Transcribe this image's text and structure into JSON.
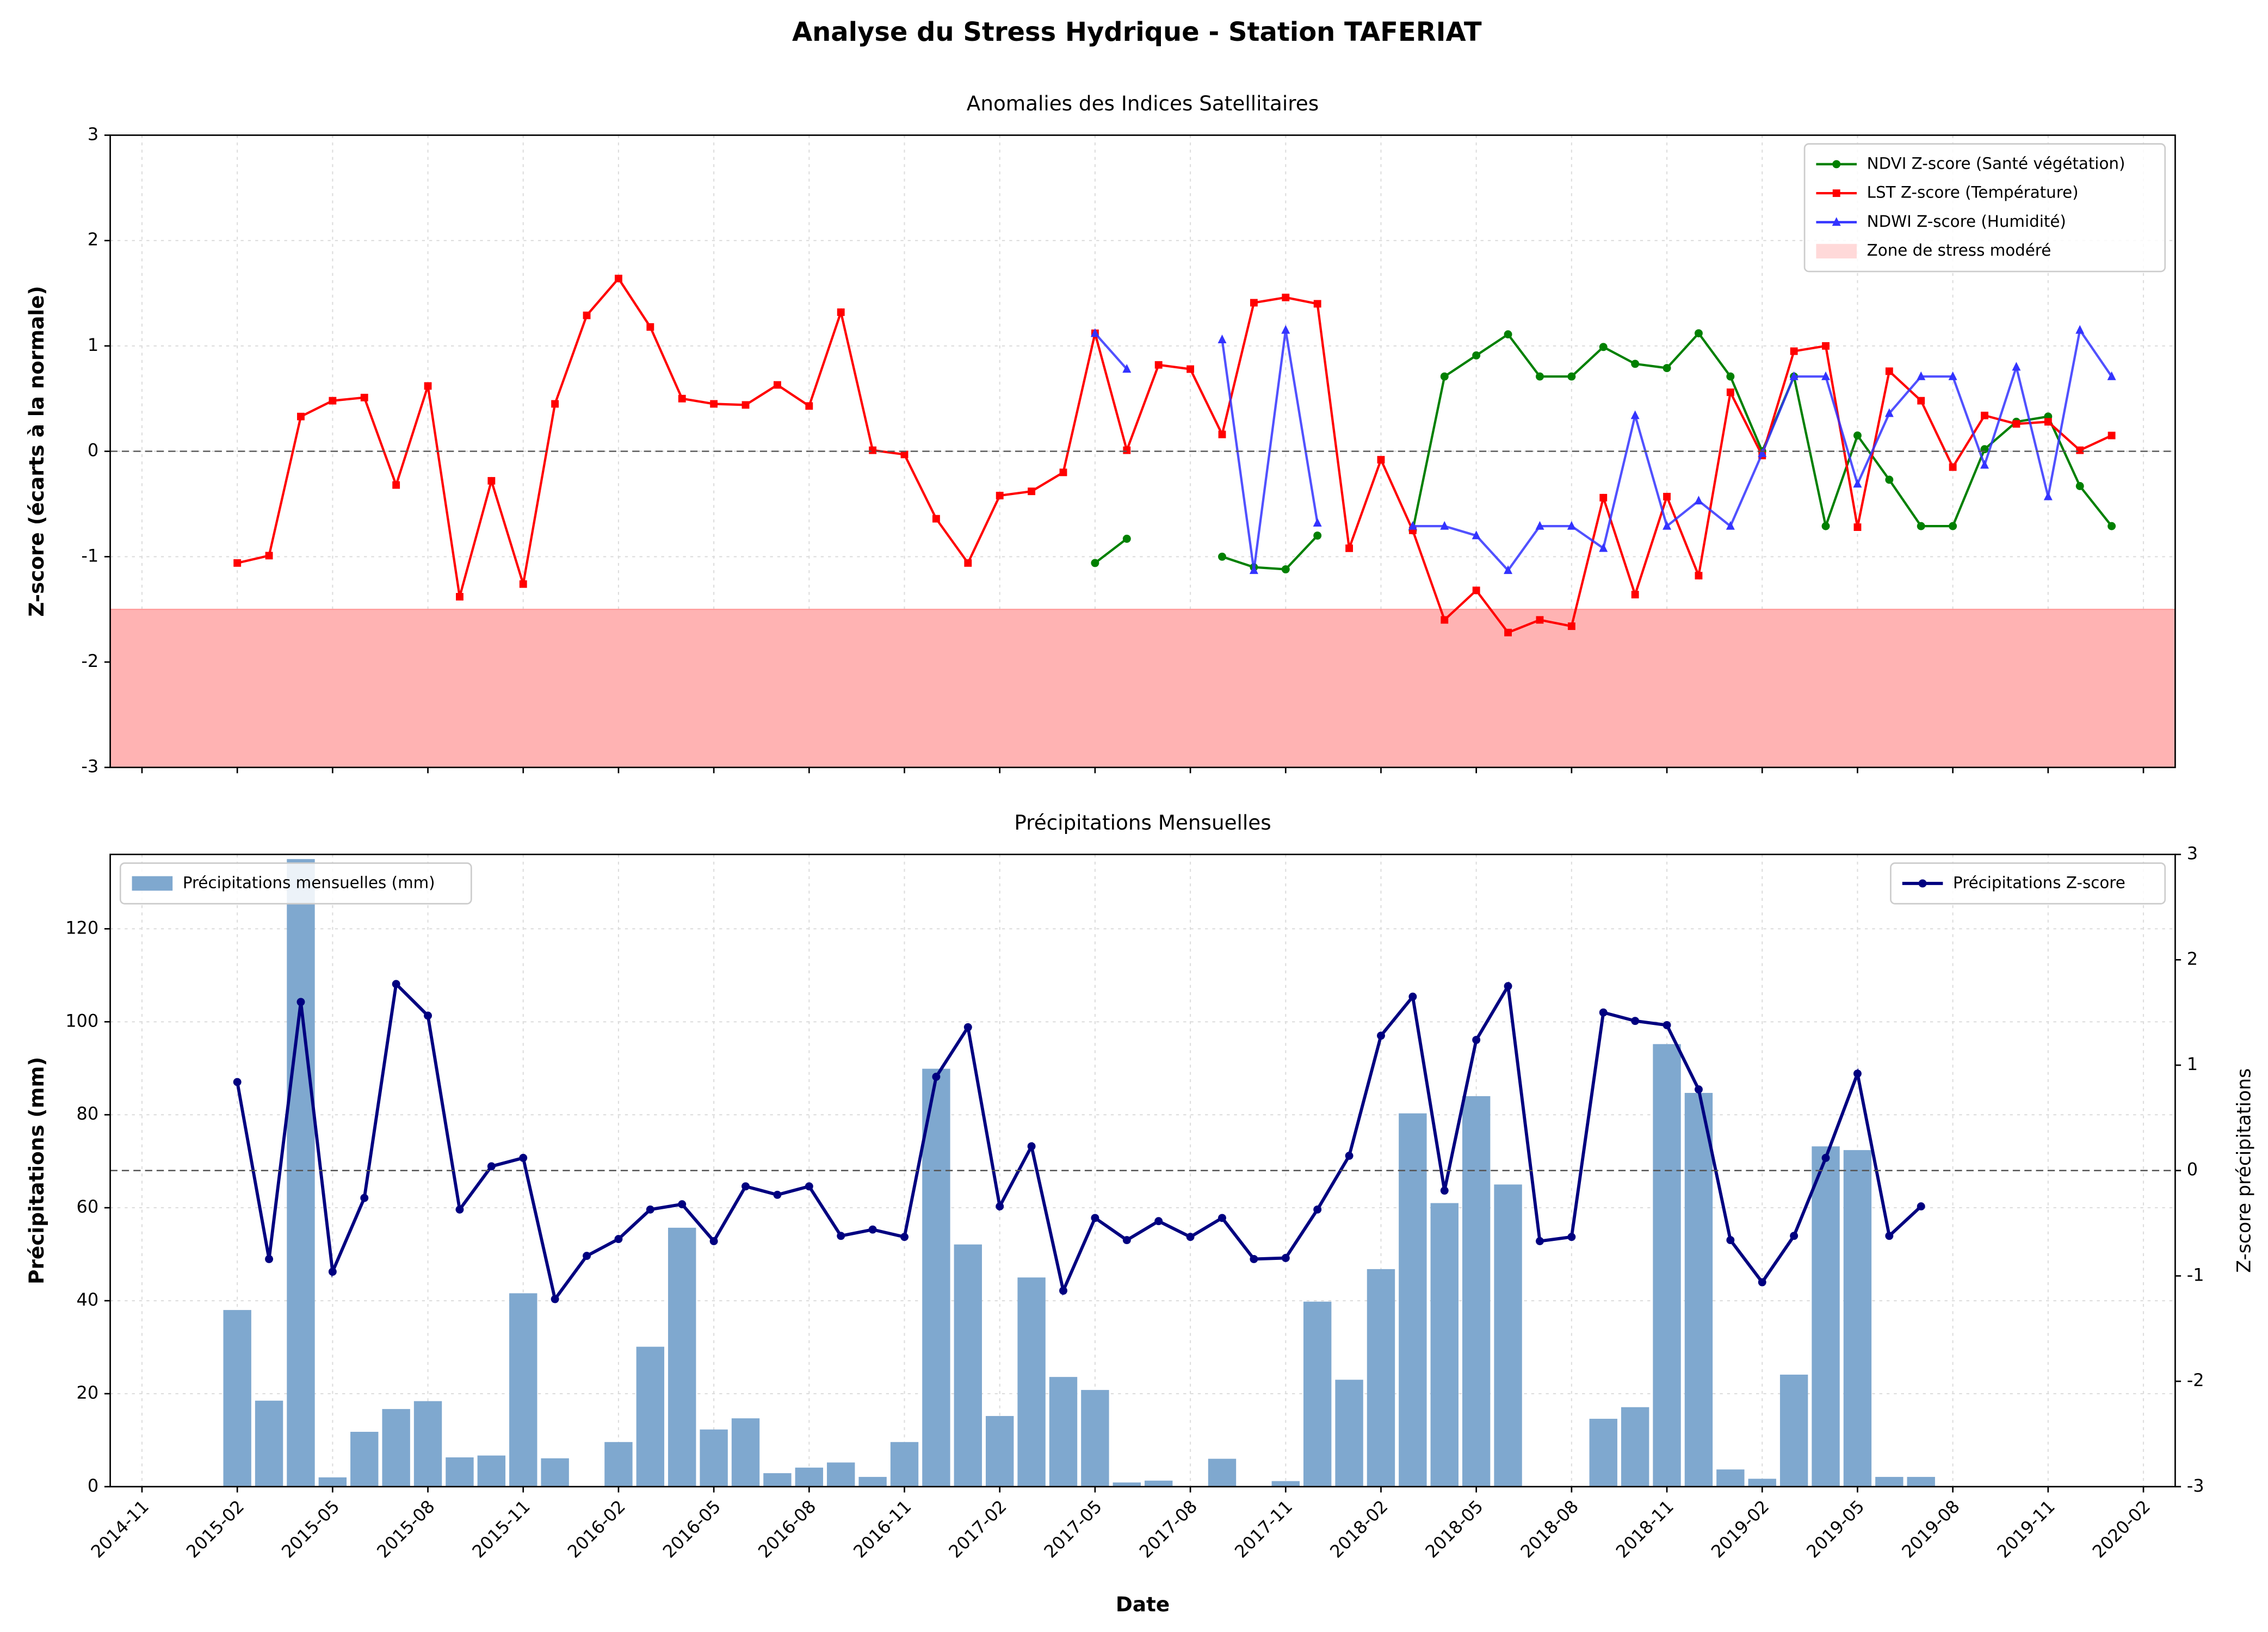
{
  "title": "Analyse du Stress Hydrique - Station TAFERIAT",
  "chart_data": [
    {
      "type": "line",
      "title": "Anomalies des Indices Satellitaires",
      "y_label": "Z-score (écarts à la normale)",
      "x": [
        "2015-02",
        "2015-03",
        "2015-04",
        "2015-05",
        "2015-06",
        "2015-07",
        "2015-08",
        "2015-09",
        "2015-10",
        "2015-11",
        "2015-12",
        "2016-01",
        "2016-02",
        "2016-03",
        "2016-04",
        "2016-05",
        "2016-06",
        "2016-07",
        "2016-08",
        "2016-09",
        "2016-10",
        "2016-11",
        "2016-12",
        "2017-01",
        "2017-02",
        "2017-03",
        "2017-04",
        "2017-05",
        "2017-06",
        "2017-07",
        "2017-08",
        "2017-09",
        "2017-10",
        "2017-11",
        "2017-12",
        "2018-01",
        "2018-02",
        "2018-03",
        "2018-04",
        "2018-05",
        "2018-06",
        "2018-07",
        "2018-08",
        "2018-09",
        "2018-10",
        "2018-11",
        "2018-12",
        "2019-01",
        "2019-02",
        "2019-03",
        "2019-04",
        "2019-05",
        "2019-06",
        "2019-07",
        "2019-08",
        "2019-09",
        "2019-10",
        "2019-11",
        "2019-12",
        "2020-01"
      ],
      "series": [
        {
          "name": "NDVI Z-score (Santé végétation)",
          "color": "#008000",
          "marker": "circle",
          "values": [
            null,
            null,
            null,
            null,
            null,
            null,
            null,
            null,
            null,
            null,
            null,
            null,
            null,
            null,
            null,
            null,
            null,
            null,
            null,
            null,
            null,
            null,
            null,
            null,
            null,
            null,
            null,
            -1.06,
            -0.83,
            null,
            null,
            -1.0,
            -1.1,
            -1.12,
            -0.8,
            null,
            null,
            -0.75,
            0.71,
            0.91,
            1.11,
            0.71,
            0.71,
            0.99,
            0.83,
            0.79,
            1.12,
            0.71,
            0.0,
            0.71,
            -0.71,
            0.15,
            -0.27,
            -0.71,
            -0.71,
            0.02,
            0.28,
            0.33,
            -0.33,
            -0.71
          ]
        },
        {
          "name": "LST Z-score (Température)",
          "color": "#ff0000",
          "marker": "square",
          "values": [
            -1.06,
            -0.99,
            0.33,
            0.48,
            0.51,
            -0.32,
            0.62,
            -1.38,
            -0.28,
            -1.26,
            0.45,
            1.29,
            1.64,
            1.18,
            0.5,
            0.45,
            0.44,
            0.63,
            0.43,
            1.32,
            0.01,
            -0.03,
            -0.64,
            -1.06,
            -0.42,
            -0.38,
            -0.2,
            1.12,
            0.01,
            0.82,
            0.78,
            0.16,
            1.41,
            1.46,
            1.4,
            -0.92,
            -0.08,
            -0.75,
            -1.6,
            -1.32,
            -1.72,
            -1.6,
            -1.66,
            -0.44,
            -1.36,
            -0.43,
            -1.18,
            0.56,
            -0.04,
            0.95,
            1.0,
            -0.72,
            0.76,
            0.48,
            -0.15,
            0.34,
            0.26,
            0.28,
            0.01,
            0.15
          ]
        },
        {
          "name": "NDWI Z-score (Humidité)",
          "color": "#3333ff",
          "marker": "triangle",
          "values": [
            null,
            null,
            null,
            null,
            null,
            null,
            null,
            null,
            null,
            null,
            null,
            null,
            null,
            null,
            null,
            null,
            null,
            null,
            null,
            null,
            null,
            null,
            null,
            null,
            null,
            null,
            null,
            1.12,
            0.78,
            null,
            null,
            1.06,
            -1.13,
            1.15,
            -0.68,
            null,
            null,
            -0.71,
            -0.71,
            -0.8,
            -1.13,
            -0.71,
            -0.71,
            -0.92,
            0.34,
            -0.71,
            -0.47,
            -0.71,
            -0.02,
            0.71,
            0.71,
            -0.31,
            0.36,
            0.71,
            0.71,
            -0.13,
            0.8,
            -0.43,
            1.15,
            0.71
          ]
        }
      ],
      "band": {
        "label": "Zone de stress modéré",
        "range": [
          -3,
          -1.5
        ],
        "color": "#ffb3b3"
      },
      "hline": 0,
      "xlim": [
        "2014-10",
        "2020-03"
      ],
      "xticks": [
        "2014-11",
        "2015-02",
        "2015-05",
        "2015-08",
        "2015-11",
        "2016-02",
        "2016-05",
        "2016-08",
        "2016-11",
        "2017-02",
        "2017-05",
        "2017-08",
        "2017-11",
        "2018-02",
        "2018-05",
        "2018-08",
        "2018-11",
        "2019-02",
        "2019-05",
        "2019-08",
        "2019-11",
        "2020-02"
      ],
      "ylim": [
        -3,
        3
      ],
      "yticks": [
        -3,
        -2,
        -1,
        0,
        1,
        2,
        3
      ],
      "grid": true,
      "legend": "upper right"
    },
    {
      "type": "bar",
      "title": "Précipitations Mensuelles",
      "x_label": "Date",
      "y_label": "Précipitations (mm)",
      "y2_label": "Z-score précipitations",
      "x": [
        "2015-02",
        "2015-03",
        "2015-04",
        "2015-05",
        "2015-06",
        "2015-07",
        "2015-08",
        "2015-09",
        "2015-10",
        "2015-11",
        "2015-12",
        "2016-01",
        "2016-02",
        "2016-03",
        "2016-04",
        "2016-05",
        "2016-06",
        "2016-07",
        "2016-08",
        "2016-09",
        "2016-10",
        "2016-11",
        "2016-12",
        "2017-01",
        "2017-02",
        "2017-03",
        "2017-04",
        "2017-05",
        "2017-06",
        "2017-07",
        "2017-08",
        "2017-09",
        "2017-10",
        "2017-11",
        "2017-12",
        "2018-01",
        "2018-02",
        "2018-03",
        "2018-04",
        "2018-05",
        "2018-06",
        "2018-07",
        "2018-08",
        "2018-09",
        "2018-10",
        "2018-11",
        "2018-12",
        "2019-01",
        "2019-02",
        "2019-03",
        "2019-04",
        "2019-05",
        "2019-06",
        "2019-07"
      ],
      "series": [
        {
          "name": "Précipitations mensuelles (mm)",
          "type": "bar",
          "color": "#7fa8cf",
          "legend": "upper left",
          "values": [
            38,
            18.5,
            135,
            2,
            11.8,
            16.7,
            18.4,
            6.3,
            6.7,
            41.6,
            6.1,
            0,
            9.6,
            30.1,
            55.7,
            12.3,
            14.7,
            2.9,
            4.1,
            5.2,
            2.1,
            9.6,
            89.9,
            52.1,
            15.2,
            45,
            23.6,
            20.8,
            0.9,
            1.3,
            0,
            6,
            0,
            1.2,
            39.8,
            23,
            46.8,
            80.3,
            61,
            84,
            65,
            0,
            0,
            14.6,
            17.1,
            95.2,
            84.7,
            3.7,
            1.7,
            24.1,
            73.2,
            72.4,
            2.1,
            2.1
          ]
        },
        {
          "name": "Précipitations Z-score",
          "type": "line",
          "axis": "y2",
          "color": "#000080",
          "marker": "circle",
          "legend": "upper right",
          "values": [
            0.84,
            -0.84,
            1.6,
            -0.96,
            -0.26,
            1.77,
            1.47,
            -0.37,
            0.04,
            0.12,
            -1.22,
            -0.81,
            -0.65,
            -0.37,
            -0.32,
            -0.67,
            -0.15,
            -0.23,
            -0.15,
            -0.62,
            -0.56,
            -0.63,
            0.89,
            1.36,
            -0.34,
            0.23,
            -1.14,
            -0.45,
            -0.66,
            -0.48,
            -0.63,
            -0.45,
            -0.84,
            -0.83,
            -0.37,
            0.14,
            1.28,
            1.65,
            -0.19,
            1.24,
            1.75,
            -0.67,
            -0.63,
            1.5,
            1.42,
            1.38,
            0.77,
            -0.66,
            -1.06,
            -0.62,
            0.12,
            0.92,
            -0.62,
            -0.34
          ]
        }
      ],
      "hline": 0,
      "xlim": [
        "2014-10",
        "2020-03"
      ],
      "xticks": [
        "2014-11",
        "2015-02",
        "2015-05",
        "2015-08",
        "2015-11",
        "2016-02",
        "2016-05",
        "2016-08",
        "2016-11",
        "2017-02",
        "2017-05",
        "2017-08",
        "2017-11",
        "2018-02",
        "2018-05",
        "2018-08",
        "2018-11",
        "2019-02",
        "2019-05",
        "2019-08",
        "2019-11",
        "2020-02"
      ],
      "ylim": [
        0,
        136
      ],
      "yticks": [
        0,
        20,
        40,
        60,
        80,
        100,
        120
      ],
      "y2lim": [
        -3,
        3
      ],
      "y2ticks": [
        -3,
        -2,
        -1,
        0,
        1,
        2,
        3
      ],
      "grid": true
    }
  ]
}
